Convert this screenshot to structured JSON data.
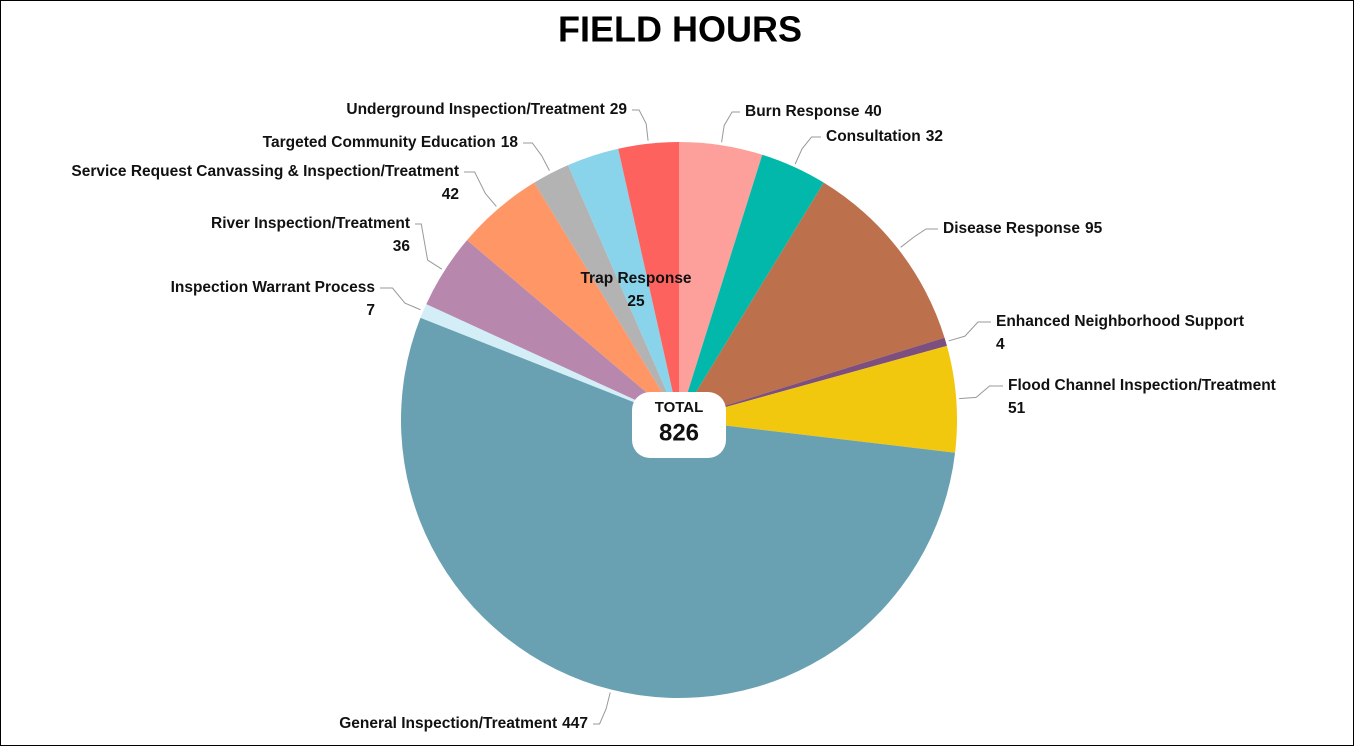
{
  "chart_data": {
    "type": "pie",
    "title": "FIELD HOURS",
    "categories": [
      "Burn Response",
      "Consultation",
      "Disease Response",
      "Enhanced Neighborhood Support",
      "Flood Channel Inspection/Treatment",
      "General Inspection/Treatment",
      "Inspection Warrant Process",
      "River Inspection/Treatment",
      "Service Request Canvassing & Inspection/Treatment",
      "Targeted Community Education",
      "Trap Response",
      "Underground Inspection/Treatment"
    ],
    "values": [
      40,
      32,
      95,
      4,
      51,
      447,
      7,
      36,
      42,
      18,
      25,
      29
    ],
    "colors": [
      "#fd9f9b",
      "#01b8aa",
      "#bd704c",
      "#7d4f7f",
      "#f2c80f",
      "#69a1b2",
      "#d3eef6",
      "#b887ad",
      "#fe9666",
      "#b3b3b3",
      "#8ad4eb",
      "#fd625e"
    ],
    "total_label": "TOTAL",
    "total": 826
  }
}
